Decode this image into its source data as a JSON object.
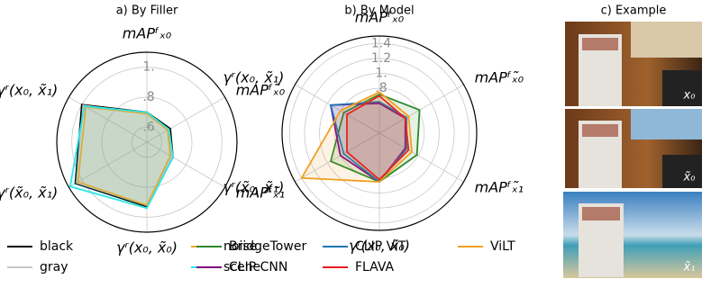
{
  "chart_data": [
    {
      "type": "radar",
      "title": "a) By Filler",
      "axes": [
        "mAPᶠₓ₀",
        "mAPᶠₓ̃₀",
        "mAPᶠₓ̃₁",
        "γʳ(x₀, x̃₀)",
        "γʳ(x̃₀, x̃₁)",
        "γʳ(x₀, x̃₁)"
      ],
      "rlim": [
        0.5,
        1.1
      ],
      "rticks": [
        {
          "value": 0.6,
          "label": ".6"
        },
        {
          "value": 0.8,
          "label": ".8"
        },
        {
          "value": 1,
          "label": "1."
        }
      ],
      "series": [
        {
          "name": "black",
          "color": "#000000",
          "values": [
            0.7,
            0.68,
            0.7,
            0.93,
            1.05,
            1.0
          ]
        },
        {
          "name": "gray",
          "color": "#c8c8c8",
          "values": [
            0.69,
            0.67,
            0.69,
            0.92,
            1.04,
            0.99
          ]
        },
        {
          "name": "noise",
          "color": "#f5a623",
          "values": [
            0.69,
            0.66,
            0.68,
            0.92,
            1.03,
            0.97
          ]
        },
        {
          "name": "scene",
          "color": "#2ee6e6",
          "values": [
            0.7,
            0.67,
            0.7,
            0.94,
            1.09,
            0.98
          ]
        }
      ]
    },
    {
      "type": "radar",
      "title": "b) By Model",
      "axes": [
        "mAPᶠₓ₀",
        "mAPᶠₓ̃₀",
        "mAPᶠₓ̃₁",
        "γʳ(x₀, x̃₀)",
        "γʳ(x̃₀, x̃₁)",
        "γʳ(x₀, x̃₁)"
      ],
      "rlim": [
        0.2,
        1.5
      ],
      "rticks": [
        {
          "value": 0.8,
          "label": ".8"
        },
        {
          "value": 1,
          "label": "1."
        },
        1.2,
        1.4
      ],
      "series": [
        {
          "name": "BridgeTower",
          "color": "#2a8a2a",
          "values": [
            0.72,
            0.82,
            0.78,
            0.85,
            0.95,
            0.75
          ]
        },
        {
          "name": "CLIP CNN",
          "color": "#800080",
          "values": [
            0.6,
            0.6,
            0.6,
            0.85,
            0.8,
            0.95
          ]
        },
        {
          "name": "CLIP ViT",
          "color": "#1f77b4",
          "values": [
            0.62,
            0.62,
            0.62,
            0.85,
            0.75,
            0.95
          ]
        },
        {
          "name": "FLAVA",
          "color": "#e8141e",
          "values": [
            0.7,
            0.6,
            0.65,
            0.82,
            0.7,
            0.7
          ]
        },
        {
          "name": "ViLT",
          "color": "#f0a020",
          "values": [
            0.75,
            0.65,
            0.7,
            0.85,
            1.4,
            0.8
          ]
        }
      ]
    }
  ],
  "example": {
    "title": "c) Example",
    "images": [
      {
        "label": "x₀"
      },
      {
        "label": "x̃₀"
      },
      {
        "label": "x̃₁"
      }
    ]
  }
}
